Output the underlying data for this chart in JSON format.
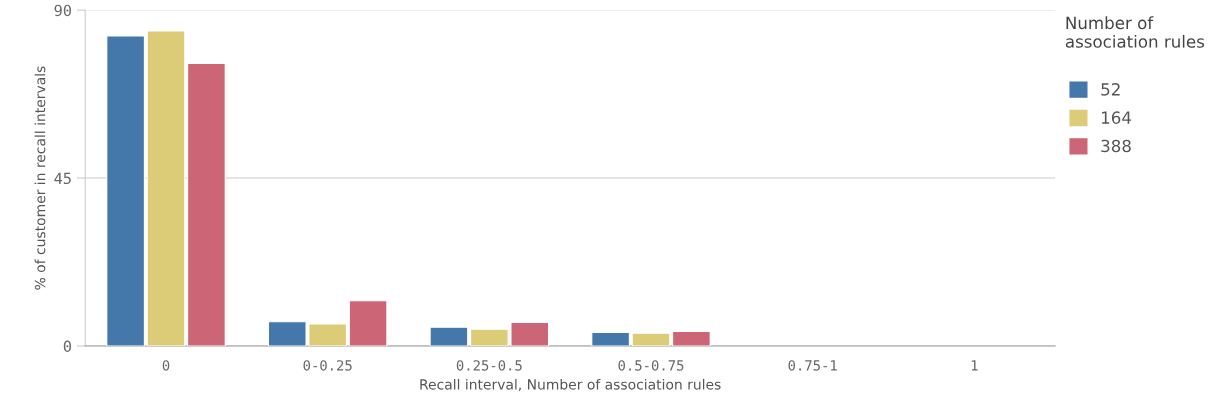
{
  "chart_data": {
    "type": "bar",
    "xlabel": "Recall interval, Number of association rules",
    "ylabel": "% of customer in recall intervals",
    "legend_title": "Number of association rules",
    "categories": [
      "0",
      "0-0.25",
      "0.25-0.5",
      "0.5-0.75",
      "0.75-1",
      "1"
    ],
    "series": [
      {
        "name": "52",
        "color": "#4477aa",
        "values": [
          83.1,
          6.5,
          5.0,
          3.6,
          null,
          null
        ]
      },
      {
        "name": "164",
        "color": "#ddcc77",
        "values": [
          84.4,
          5.9,
          4.5,
          3.4,
          null,
          null
        ]
      },
      {
        "name": "388",
        "color": "#cc6677",
        "values": [
          75.7,
          12.1,
          6.3,
          3.9,
          null,
          null
        ]
      }
    ],
    "ylim": [
      0,
      90
    ],
    "yticks": [
      0,
      45,
      90
    ],
    "grid": "y",
    "legend": "right"
  }
}
